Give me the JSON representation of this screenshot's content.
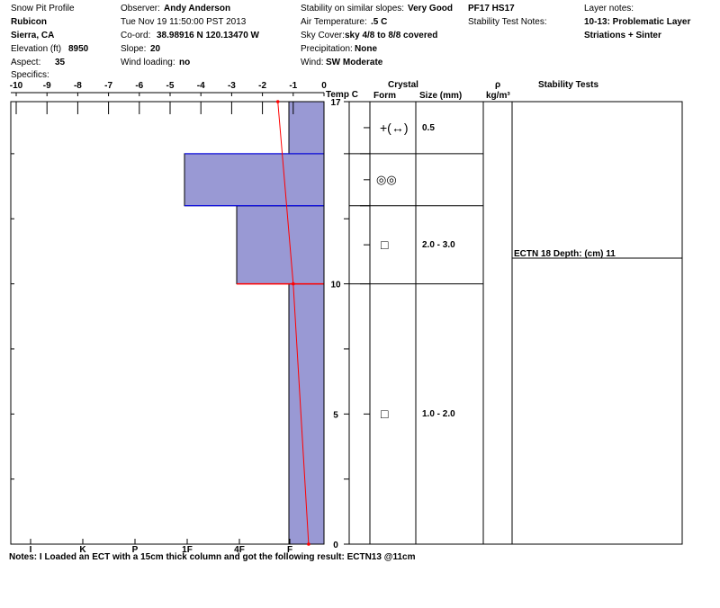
{
  "header": {
    "col1": {
      "title": "Snow Pit Profile",
      "location": "Rubicon",
      "region": "Sierra, CA",
      "elevation_label": "Elevation (ft)",
      "elevation": "8950",
      "aspect_label": "Aspect:",
      "aspect": "35",
      "specifics_label": "Specifics:"
    },
    "col2": {
      "observer_label": "Observer:",
      "observer": "Andy Anderson",
      "datetime": "Tue Nov 19 11:50:00 PST 2013",
      "coord_label": "Co-ord:",
      "coord": "38.98916 N 120.13470 W",
      "slope_label": "Slope:",
      "slope": "20",
      "wind_loading_label": "Wind loading:",
      "wind_loading": "no"
    },
    "col3": {
      "stability_label": "Stability on similar slopes:",
      "stability": "Very Good",
      "air_temp_label": "Air Temperature:",
      "air_temp": ".5 C",
      "sky_label": "Sky Cover:",
      "sky": "sky 4/8 to 8/8 covered",
      "precip_label": "Precipitation:",
      "precip": "None",
      "wind_label": "Wind:",
      "wind": "SW Moderate"
    },
    "col4": {
      "pf_hs": "PF17 HS17",
      "stability_notes_label": "Stability Test Notes:"
    },
    "col5": {
      "layer_notes_label": "Layer notes:",
      "layer_note_1": "10-13: Problematic Layer",
      "layer_note_2": "Striations + Sinter"
    }
  },
  "table_headers": {
    "temp": "Temp C",
    "crystal": "Crystal",
    "form": "Form",
    "size": "Size (mm)",
    "rho": "ρ",
    "rho_unit": "kg/m³",
    "stability_tests": "Stability Tests"
  },
  "layers": [
    {
      "form_symbol": "+(↔)",
      "size": "0.5"
    },
    {
      "form_symbol": "◎◎",
      "size": ""
    },
    {
      "form_symbol": "□",
      "size": "2.0 - 3.0"
    },
    {
      "form_symbol": "□",
      "size": "1.0 - 2.0"
    }
  ],
  "stability_test": "ECTN 18   Depth: (cm) 11",
  "notes": "Notes:  I Loaded an ECT with a 15cm thick column and got the following result: ECTN13 @11cm",
  "chart_data": {
    "type": "area",
    "temp_axis": {
      "ticks": [
        "-10",
        "-9",
        "-8",
        "-7",
        "-6",
        "-5",
        "-4",
        "-3",
        "-2",
        "-1",
        "0"
      ],
      "range": [
        -10,
        0
      ]
    },
    "hardness_axis": {
      "ticks": [
        "I",
        "K",
        "P",
        "1F",
        "4F",
        "F"
      ]
    },
    "height_axis": {
      "ticks": [
        "17",
        "10",
        "5",
        "0"
      ],
      "range": [
        0,
        17
      ]
    },
    "hardness_profile": [
      {
        "bottom": 0,
        "top": 10,
        "hardness": "F"
      },
      {
        "bottom": 10,
        "top": 13,
        "hardness": "4F"
      },
      {
        "bottom": 13,
        "top": 15,
        "hardness": "1F+"
      },
      {
        "bottom": 15,
        "top": 17,
        "hardness": "F"
      }
    ],
    "temperature_profile": [
      {
        "height": 0,
        "temp": -0.5
      },
      {
        "height": 10,
        "temp": -1.0
      },
      {
        "height": 17,
        "temp": -1.5
      }
    ],
    "colors": {
      "hardness_fill": "#9999d4",
      "layer_line": "#0000ff",
      "temp_line": "#ff0000",
      "weak_layer": "#ff0000"
    }
  }
}
